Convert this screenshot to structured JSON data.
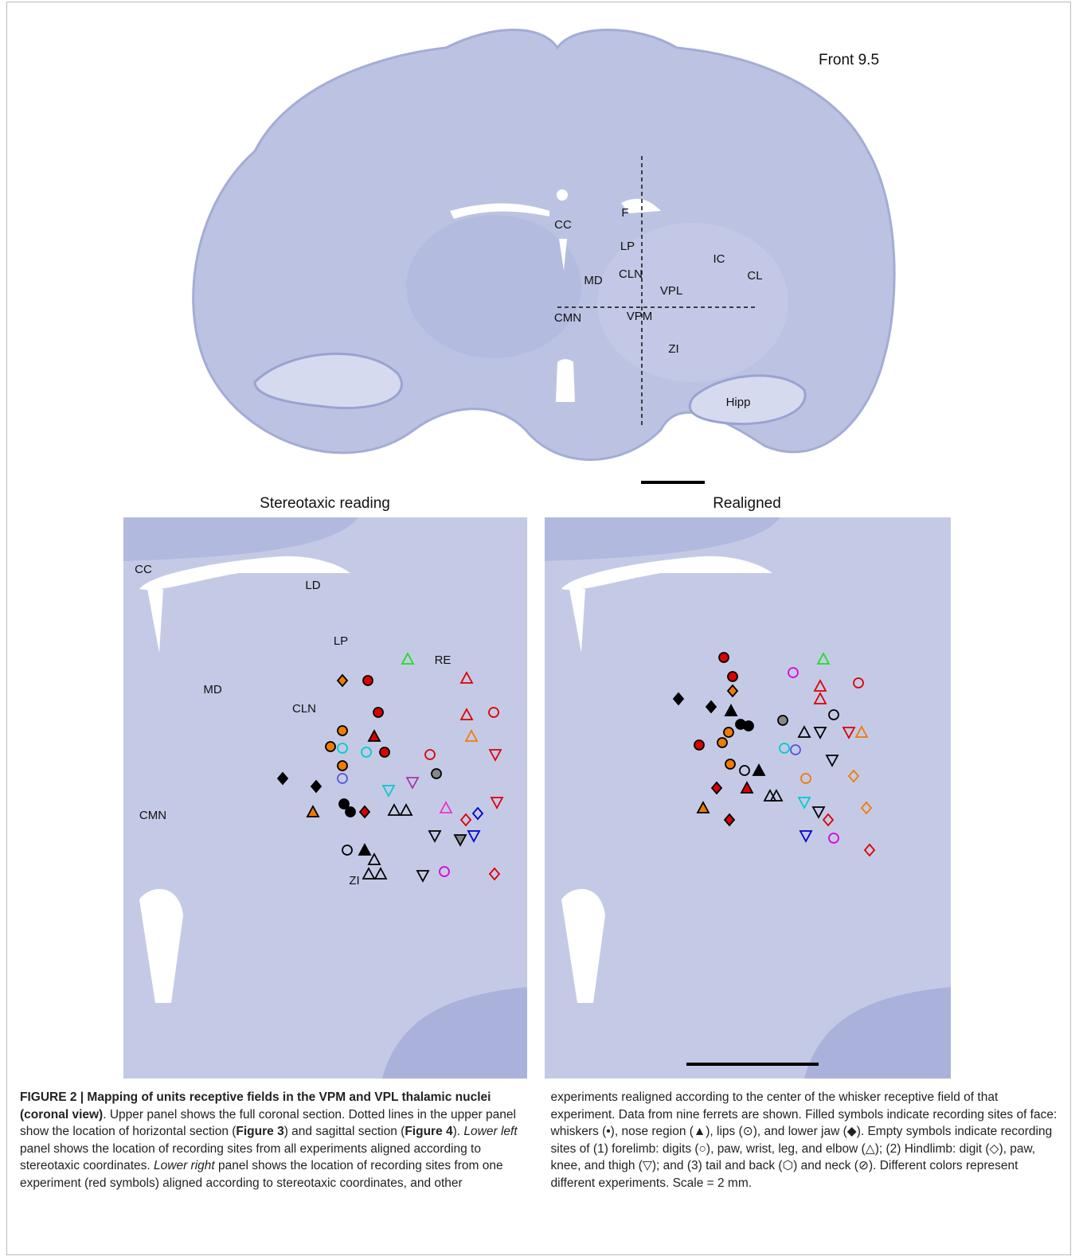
{
  "figure": {
    "upper": {
      "stage": "Front 9.5",
      "labels": [
        "CC",
        "F",
        "LP",
        "MD",
        "CLN",
        "VPL",
        "IC",
        "CL",
        "CMN",
        "VPM",
        "ZI",
        "Hipp"
      ]
    },
    "left_panel": {
      "title": "Stereotaxic reading",
      "labels": [
        "CC",
        "LD",
        "LP",
        "RE",
        "MD",
        "CLN",
        "CMN",
        "ZI"
      ]
    },
    "right_panel": {
      "title": "Realigned"
    }
  },
  "caption": {
    "segments": [
      {
        "b": "FIGURE 2 | Mapping of units receptive fields in the VPM and VPL thalamic nuclei (coronal view)"
      },
      {
        "t": ". Upper panel shows the full coronal section. Dotted lines in the upper panel show the location of horizontal section ("
      },
      {
        "b": "Figure 3"
      },
      {
        "t": ") and sagittal section ("
      },
      {
        "b": "Figure 4"
      },
      {
        "t": "). "
      },
      {
        "i": "Lower left"
      },
      {
        "t": " panel shows the location of recording sites from all experiments aligned according to stereotaxic coordinates. "
      },
      {
        "i": "Lower right"
      },
      {
        "t": " panel shows the location of recording sites from one experiment (red symbols) aligned according to stereotaxic coordinates, and other experiments realigned according to the center of the whisker receptive field of that experiment. Data from nine ferrets are shown. Filled symbols indicate recording sites of face: whiskers (•), nose region (▲), lips (⊙), and lower jaw (◆). Empty symbols indicate recording sites of (1) forelimb: digits (○), paw, wrist, leg, and elbow (△); (2) Hindlimb: digit (◇), paw, knee, and thigh (▽); and (3) tail and back (⬡) and neck (⊘). Different colors represent different experiments. Scale = 2 mm."
      }
    ]
  }
}
